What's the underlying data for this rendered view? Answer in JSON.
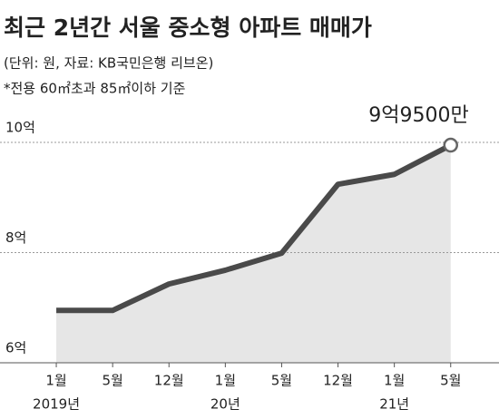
{
  "chart_data": {
    "type": "area",
    "title": "최근 2년간 서울 중소형 아파트 매매가",
    "subtitle": "(단위: 원, 자료: KB국민은행 리브온)",
    "note": "*전용 60㎡초과 85㎡이하 기준",
    "annotation": "9억9500만",
    "categories": [
      "1월",
      "5월",
      "12월",
      "1월",
      "5월",
      "12월",
      "1월",
      "5월"
    ],
    "year_labels": [
      "2019년",
      null,
      null,
      "20년",
      null,
      null,
      "21년",
      null
    ],
    "values": [
      6.95,
      6.95,
      7.43,
      7.68,
      7.99,
      9.24,
      9.42,
      9.95
    ],
    "color": "#4a4a4a",
    "fill": "#e6e6e6",
    "ylim": [
      6,
      10
    ],
    "yticks": [
      {
        "value": 6,
        "label": "6억"
      },
      {
        "value": 8,
        "label": "8억"
      },
      {
        "value": 10,
        "label": "10억"
      }
    ],
    "grid": true
  }
}
